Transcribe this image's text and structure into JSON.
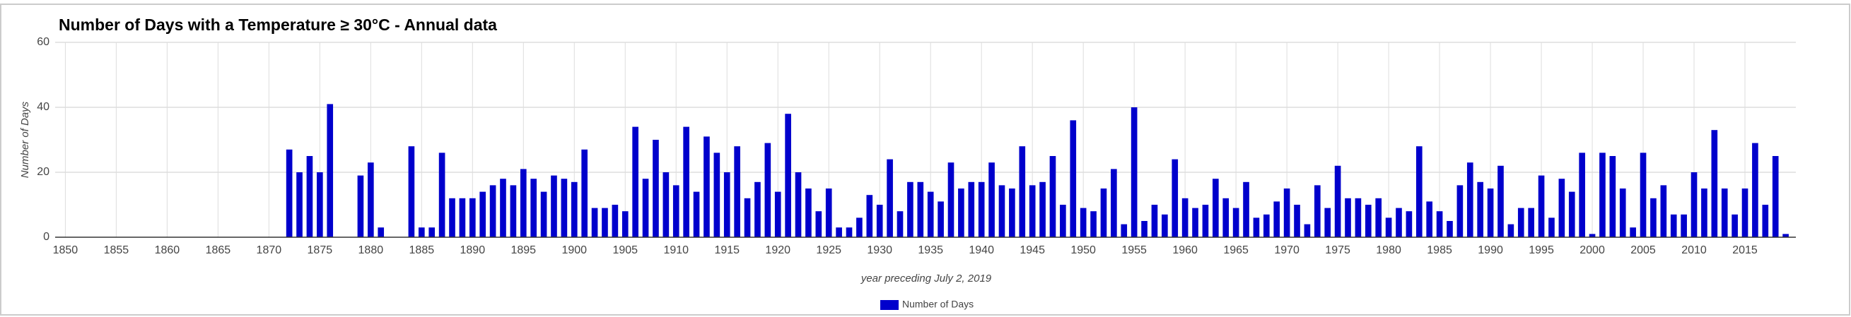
{
  "chart_data": {
    "type": "bar",
    "title": "Number of Days with a Temperature ≥ 30°C - Annual data",
    "x_label": "year preceding July 2, 2019",
    "y_label": "Number of Days",
    "x": [
      1850,
      1851,
      1852,
      1853,
      1854,
      1855,
      1856,
      1857,
      1858,
      1859,
      1860,
      1861,
      1862,
      1863,
      1864,
      1865,
      1866,
      1867,
      1868,
      1869,
      1870,
      1871,
      1872,
      1873,
      1874,
      1875,
      1876,
      1877,
      1878,
      1879,
      1880,
      1881,
      1882,
      1883,
      1884,
      1885,
      1886,
      1887,
      1888,
      1889,
      1890,
      1891,
      1892,
      1893,
      1894,
      1895,
      1896,
      1897,
      1898,
      1899,
      1900,
      1901,
      1902,
      1903,
      1904,
      1905,
      1906,
      1907,
      1908,
      1909,
      1910,
      1911,
      1912,
      1913,
      1914,
      1915,
      1916,
      1917,
      1918,
      1919,
      1920,
      1921,
      1922,
      1923,
      1924,
      1925,
      1926,
      1927,
      1928,
      1929,
      1930,
      1931,
      1932,
      1933,
      1934,
      1935,
      1936,
      1937,
      1938,
      1939,
      1940,
      1941,
      1942,
      1943,
      1944,
      1945,
      1946,
      1947,
      1948,
      1949,
      1950,
      1951,
      1952,
      1953,
      1954,
      1955,
      1956,
      1957,
      1958,
      1959,
      1960,
      1961,
      1962,
      1963,
      1964,
      1965,
      1966,
      1967,
      1968,
      1969,
      1970,
      1971,
      1972,
      1973,
      1974,
      1975,
      1976,
      1977,
      1978,
      1979,
      1980,
      1981,
      1982,
      1983,
      1984,
      1985,
      1986,
      1987,
      1988,
      1989,
      1990,
      1991,
      1992,
      1993,
      1994,
      1995,
      1996,
      1997,
      1998,
      1999,
      2000,
      2001,
      2002,
      2003,
      2004,
      2005,
      2006,
      2007,
      2008,
      2009,
      2010,
      2011,
      2012,
      2013,
      2014,
      2015,
      2016,
      2017,
      2018,
      2019
    ],
    "series": [
      {
        "name": "Number of Days",
        "color": "#0000cc",
        "values": [
          0,
          0,
          0,
          0,
          0,
          0,
          0,
          0,
          0,
          0,
          0,
          0,
          0,
          0,
          0,
          0,
          0,
          0,
          0,
          0,
          0,
          0,
          27,
          20,
          25,
          20,
          41,
          0,
          0,
          19,
          23,
          3,
          0,
          0,
          28,
          3,
          3,
          26,
          12,
          12,
          12,
          14,
          16,
          18,
          16,
          21,
          18,
          14,
          19,
          18,
          17,
          27,
          9,
          9,
          10,
          8,
          34,
          18,
          30,
          20,
          16,
          34,
          14,
          31,
          26,
          20,
          28,
          12,
          17,
          29,
          14,
          38,
          20,
          15,
          8,
          15,
          3,
          3,
          6,
          13,
          10,
          24,
          8,
          17,
          17,
          14,
          11,
          23,
          15,
          17,
          17,
          23,
          16,
          15,
          28,
          16,
          17,
          25,
          10,
          36,
          9,
          8,
          15,
          21,
          4,
          40,
          5,
          10,
          7,
          24,
          12,
          9,
          10,
          18,
          12,
          9,
          17,
          6,
          7,
          11,
          15,
          10,
          4,
          16,
          9,
          22,
          12,
          12,
          10,
          12,
          6,
          9,
          8,
          28,
          11,
          8,
          5,
          16,
          23,
          17,
          15,
          22,
          4,
          9,
          9,
          19,
          6,
          18,
          14,
          26,
          1,
          26,
          25,
          15,
          3,
          26,
          12,
          16,
          7,
          7,
          20,
          15,
          33,
          15,
          7,
          15,
          29,
          10,
          25,
          1
        ]
      }
    ],
    "xlim": [
      1849,
      2020
    ],
    "ylim": [
      0,
      60
    ],
    "xticks": [
      1850,
      1855,
      1860,
      1865,
      1870,
      1875,
      1880,
      1885,
      1890,
      1895,
      1900,
      1905,
      1910,
      1915,
      1920,
      1925,
      1930,
      1935,
      1940,
      1945,
      1950,
      1955,
      1960,
      1965,
      1970,
      1975,
      1980,
      1985,
      1990,
      1995,
      2000,
      2005,
      2010,
      2015
    ],
    "yticks": [
      0,
      20,
      40,
      60
    ],
    "grid": true,
    "legend": "bottom"
  }
}
